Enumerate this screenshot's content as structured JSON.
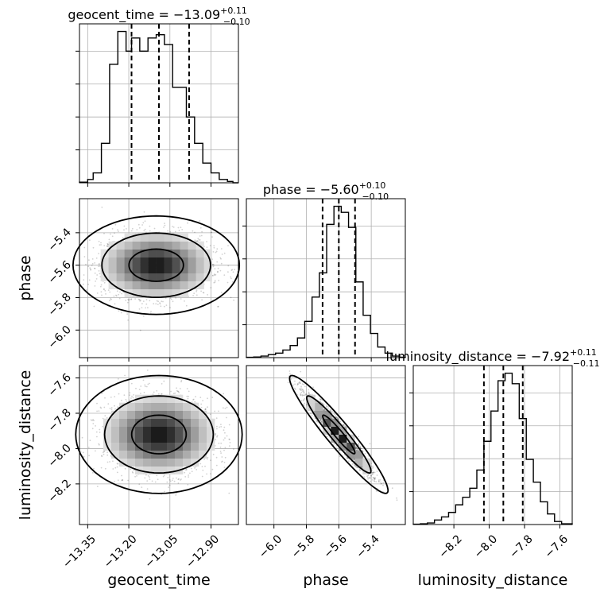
{
  "chart_data": {
    "type": "corner",
    "parameters": [
      "geocent_time",
      "phase",
      "luminosity_distance"
    ],
    "axis_labels": {
      "geocent_time": "geocent_time",
      "phase": "phase",
      "luminosity_distance": "luminosity_distance"
    },
    "ranges": {
      "geocent_time": [
        -13.38,
        -12.8
      ],
      "phase": [
        -6.17,
        -5.19
      ],
      "luminosity_distance": [
        -8.43,
        -7.53
      ]
    },
    "ticks": {
      "geocent_time": [
        -13.35,
        -13.2,
        -13.05,
        -12.9
      ],
      "phase": [
        -6.0,
        -5.8,
        -5.6,
        -5.4
      ],
      "luminosity_distance": [
        -8.2,
        -8.0,
        -7.8,
        -7.6
      ]
    },
    "tick_labels": {
      "geocent_time": [
        "−13.35",
        "−13.20",
        "−13.05",
        "−12.90"
      ],
      "phase": [
        "−6.0",
        "−5.8",
        "−5.6",
        "−5.4"
      ],
      "luminosity_distance": [
        "−8.2",
        "−8.0",
        "−7.8",
        "−7.6"
      ]
    },
    "grid": true,
    "marginals": [
      {
        "param": "geocent_time",
        "title_main": "geocent_time = −13.09",
        "title_sup": "+0.11",
        "title_sub": "−0.10",
        "median": -13.09,
        "plus": 0.11,
        "minus": 0.1,
        "quantiles": [
          -13.19,
          -13.09,
          -12.98
        ],
        "bins": [
          -13.38,
          -13.35,
          -13.33,
          -13.3,
          -13.27,
          -13.24,
          -13.21,
          -13.19,
          -13.16,
          -13.13,
          -13.1,
          -13.07,
          -13.04,
          -13.01,
          -12.99,
          -12.96,
          -12.93,
          -12.9,
          -12.87,
          -12.84,
          -12.82,
          -12.8
        ],
        "counts": [
          0.2,
          1.0,
          3.0,
          12.0,
          36.0,
          46.0,
          40.0,
          44.0,
          40.0,
          44.0,
          45.0,
          42.0,
          29.0,
          29.0,
          20.0,
          12.0,
          6.0,
          3.0,
          1.0,
          0.4,
          0.0
        ]
      },
      {
        "param": "phase",
        "title_main": "phase = −5.60",
        "title_sup": "+0.10",
        "title_sub": "−0.10",
        "median": -5.6,
        "plus": 0.1,
        "minus": 0.1,
        "quantiles": [
          -5.7,
          -5.6,
          -5.5
        ],
        "bins": [
          -6.17,
          -6.125,
          -6.08,
          -6.035,
          -5.99,
          -5.945,
          -5.9,
          -5.855,
          -5.81,
          -5.765,
          -5.72,
          -5.675,
          -5.63,
          -5.585,
          -5.54,
          -5.495,
          -5.45,
          -5.405,
          -5.36,
          -5.315,
          -5.27,
          -5.225,
          -5.19
        ],
        "counts": [
          0.2,
          0.4,
          1.0,
          2.0,
          3.0,
          5.0,
          8.0,
          13.0,
          24.0,
          40.0,
          56.0,
          88.0,
          100.0,
          96.0,
          86.0,
          50.0,
          28.0,
          16.0,
          7.0,
          3.0,
          1.0,
          0.3
        ]
      },
      {
        "param": "luminosity_distance",
        "title_main": "luminosity_distance = −7.92",
        "title_sup": "+0.11",
        "title_sub": "−0.11",
        "median": -7.92,
        "plus": 0.11,
        "minus": 0.11,
        "quantiles": [
          -8.03,
          -7.92,
          -7.81
        ],
        "bins": [
          -8.43,
          -8.39,
          -8.35,
          -8.31,
          -8.27,
          -8.23,
          -8.19,
          -8.15,
          -8.11,
          -8.07,
          -8.03,
          -7.99,
          -7.95,
          -7.91,
          -7.87,
          -7.83,
          -7.79,
          -7.75,
          -7.71,
          -7.67,
          -7.63,
          -7.59,
          -7.53
        ],
        "counts": [
          0.2,
          0.5,
          1.0,
          3.0,
          5.0,
          8.0,
          13.0,
          18.0,
          24.0,
          36.0,
          55.0,
          75.0,
          95.0,
          100.0,
          93.0,
          70.0,
          43.0,
          28.0,
          15.0,
          7.0,
          2.0,
          0.5
        ]
      }
    ],
    "joints": [
      {
        "x": "geocent_time",
        "y": "phase",
        "mean": [
          -13.1,
          -5.6
        ],
        "sd": [
          0.1,
          0.1
        ],
        "corr": 0.0,
        "contour_levels": [
          0.39,
          0.86,
          0.99
        ]
      },
      {
        "x": "geocent_time",
        "y": "luminosity_distance",
        "mean": [
          -13.09,
          -7.92
        ],
        "sd": [
          0.1,
          0.11
        ],
        "corr": 0.0,
        "contour_levels": [
          0.39,
          0.86,
          0.99
        ]
      },
      {
        "x": "phase",
        "y": "luminosity_distance",
        "mean": [
          -5.6,
          -7.92
        ],
        "sd": [
          0.1,
          0.11
        ],
        "corr": -0.95,
        "contour_levels": [
          0.39,
          0.86,
          0.99
        ]
      }
    ]
  }
}
